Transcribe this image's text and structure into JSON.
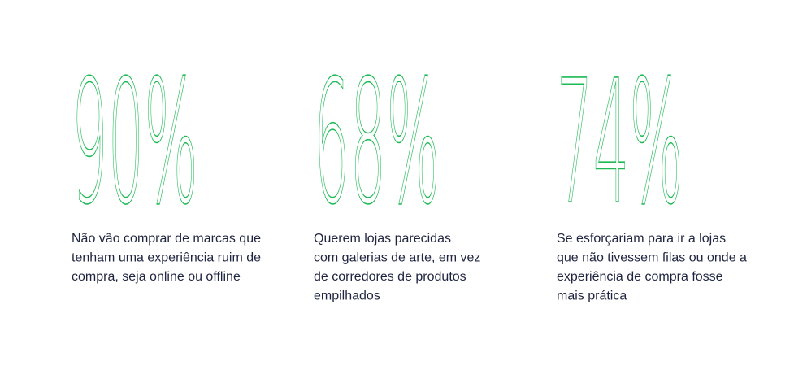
{
  "stats": [
    {
      "value": "90%",
      "lines": [
        "Não vão comprar de marcas que",
        "tenham uma experiência ruim de",
        "compra, seja online ou offline"
      ]
    },
    {
      "value": "68%",
      "lines": [
        "Querem lojas parecidas",
        "com galerias de arte, em vez",
        "de corredores de produtos",
        "empilhados"
      ]
    },
    {
      "value": "74%",
      "lines": [
        "Se esforçariam para ir a lojas",
        "que não tivessem filas ou onde a",
        "experiência de compra fosse",
        "mais prática"
      ]
    }
  ]
}
